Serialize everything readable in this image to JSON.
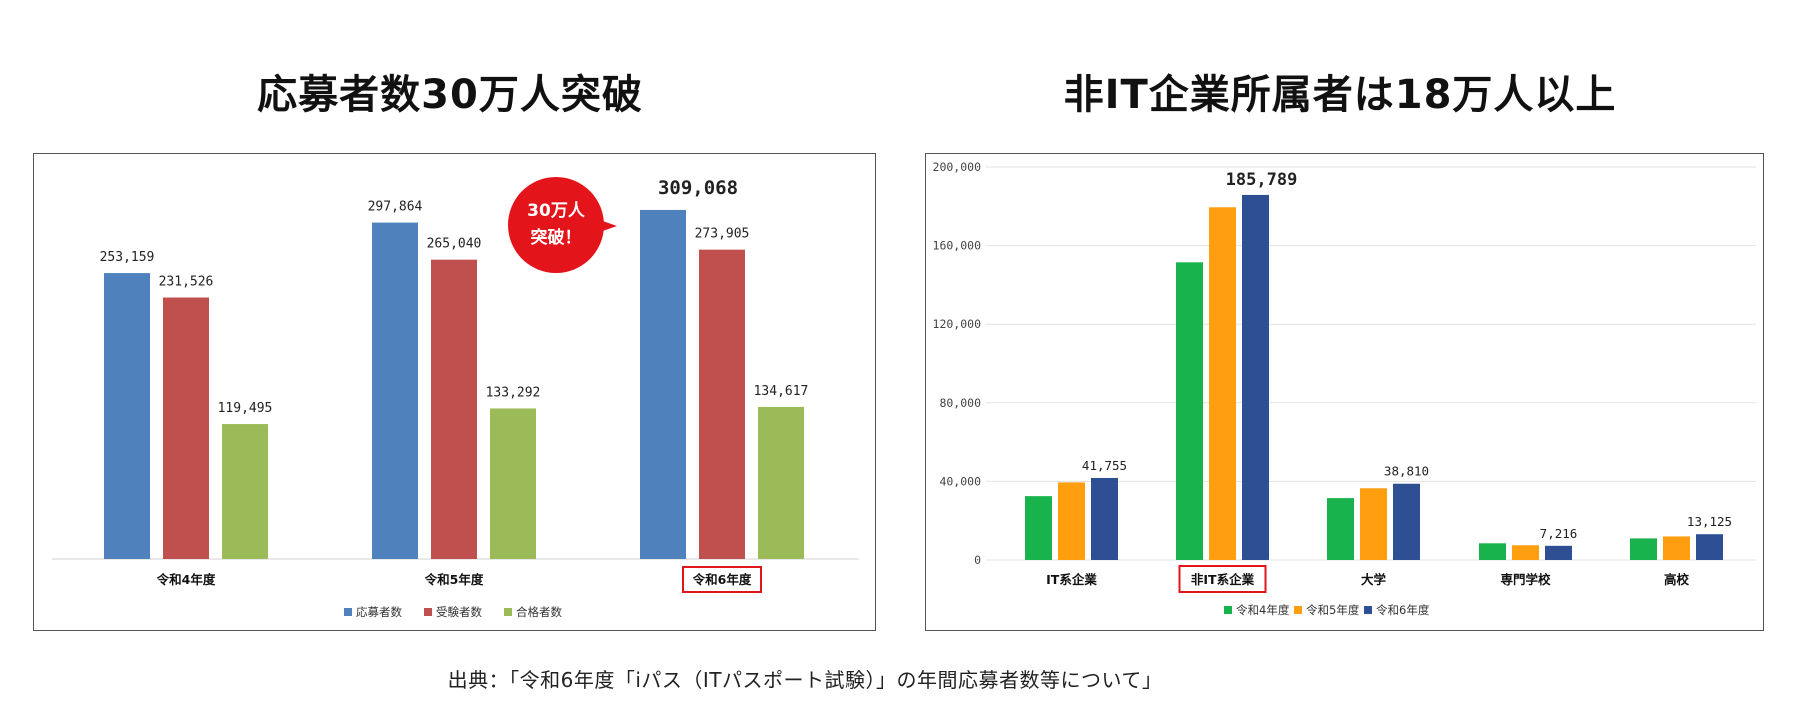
{
  "titles": {
    "left": "応募者数30万人突破",
    "right": "非IT企業所属者は18万人以上"
  },
  "source": "出典：「令和6年度「iパス（ITパスポート試験）」の年間応募者数等について」",
  "callout": {
    "line1": "30万人",
    "line2": "突破！"
  },
  "colors": {
    "applicants": "#4f81bd",
    "examinees": "#c0504d",
    "passers": "#9bbb59",
    "r4": "#19b34d",
    "r5": "#ff9e0f",
    "r6": "#2e4f93",
    "highlight": "#e3151a"
  },
  "chart_data": [
    {
      "type": "bar",
      "categories": [
        "令和4年度",
        "令和5年度",
        "令和6年度"
      ],
      "highlight_category": "令和6年度",
      "series": [
        {
          "name": "応募者数",
          "values": [
            253159,
            297864,
            309068
          ],
          "labels": [
            "253,159",
            "297,864",
            "309,068"
          ]
        },
        {
          "name": "受験者数",
          "values": [
            231526,
            265040,
            273905
          ],
          "labels": [
            "231,526",
            "265,040",
            "273,905"
          ]
        },
        {
          "name": "合格者数",
          "values": [
            119495,
            133292,
            134617
          ],
          "labels": [
            "119,495",
            "133,292",
            "134,617"
          ]
        }
      ],
      "ylim": [
        0,
        340000
      ],
      "grid": false,
      "legend": "bottom"
    },
    {
      "type": "bar",
      "categories": [
        "IT系企業",
        "非IT系企業",
        "大学",
        "専門学校",
        "高校"
      ],
      "highlight_category": "非IT系企業",
      "series": [
        {
          "name": "令和4年度",
          "values": [
            32500,
            151500,
            31500,
            8500,
            11000
          ],
          "labels": [
            "",
            "",
            "",
            "",
            ""
          ]
        },
        {
          "name": "令和5年度",
          "values": [
            39500,
            179500,
            36500,
            7500,
            12000
          ],
          "labels": [
            "",
            "",
            "",
            "",
            ""
          ]
        },
        {
          "name": "令和6年度",
          "values": [
            41755,
            185789,
            38810,
            7216,
            13125
          ],
          "labels": [
            "41,755",
            "185,789",
            "38,810",
            "7,216",
            "13,125"
          ]
        }
      ],
      "yticks": [
        "0",
        "40,000",
        "80,000",
        "120,000",
        "160,000",
        "200,000"
      ],
      "ylim": [
        0,
        200000
      ],
      "grid": true,
      "legend": "bottom"
    }
  ]
}
